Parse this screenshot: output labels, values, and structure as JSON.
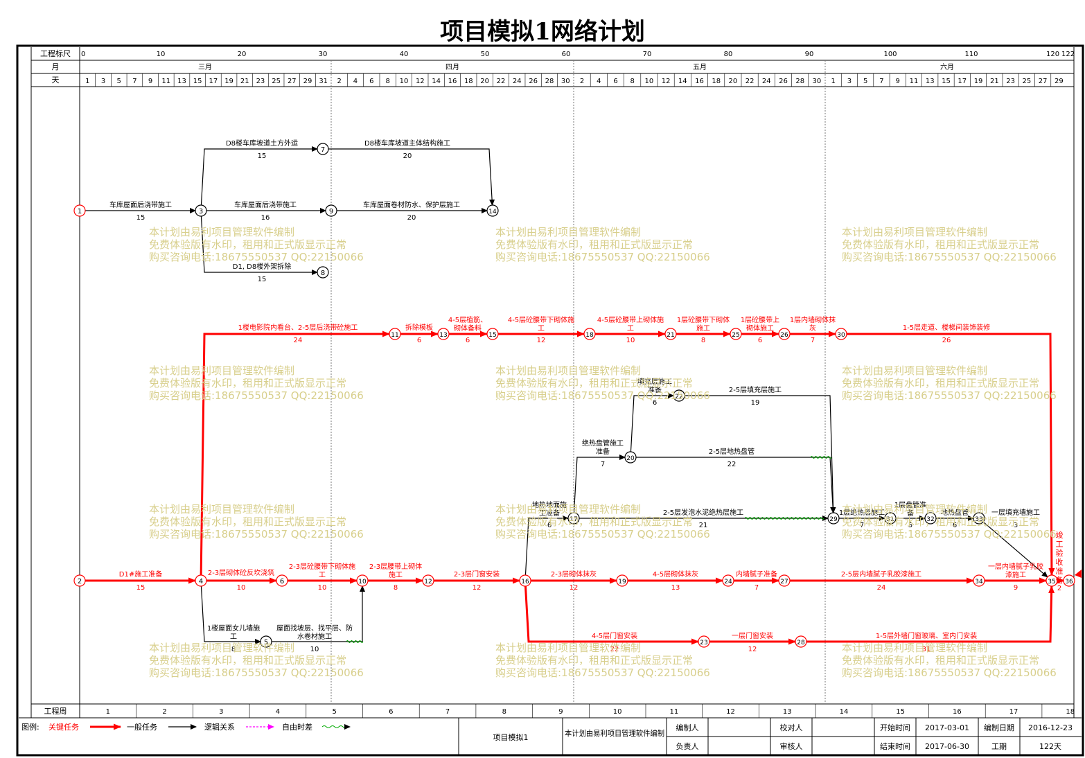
{
  "title": "项目模拟1网络计划",
  "scale": {
    "ruler_label": "工程标尺",
    "month_label": "月",
    "day_label": "天",
    "week_label": "工程周",
    "ruler_ticks": [
      "0",
      "10",
      "20",
      "30",
      "40",
      "50",
      "60",
      "70",
      "80",
      "90",
      "100",
      "110",
      "120",
      "122"
    ],
    "months": [
      "三月",
      "四月",
      "五月",
      "六月"
    ],
    "days": {
      "mar": [
        "1",
        "3",
        "5",
        "7",
        "9",
        "11",
        "13",
        "15",
        "17",
        "19",
        "21",
        "23",
        "25",
        "27",
        "29",
        "31"
      ],
      "apr": [
        "2",
        "4",
        "6",
        "8",
        "10",
        "12",
        "14",
        "16",
        "18",
        "20",
        "22",
        "24",
        "26",
        "28",
        "30"
      ],
      "may": [
        "2",
        "4",
        "6",
        "8",
        "10",
        "12",
        "14",
        "16",
        "18",
        "20",
        "22",
        "24",
        "26",
        "28",
        "30"
      ],
      "jun": [
        "1",
        "3",
        "5",
        "7",
        "9",
        "11",
        "13",
        "15",
        "17",
        "19",
        "21",
        "23",
        "25",
        "27",
        "29"
      ]
    },
    "weeks": [
      "1",
      "2",
      "3",
      "4",
      "5",
      "6",
      "7",
      "8",
      "9",
      "10",
      "11",
      "12",
      "13",
      "14",
      "15",
      "16",
      "17",
      "18"
    ]
  },
  "nodes": [
    "1",
    "2",
    "3",
    "4",
    "5",
    "6",
    "7",
    "8",
    "9",
    "10",
    "11",
    "12",
    "13",
    "14",
    "15",
    "16",
    "17",
    "18",
    "19",
    "20",
    "21",
    "22",
    "23",
    "24",
    "25",
    "26",
    "27",
    "28",
    "29",
    "30",
    "31",
    "32",
    "33",
    "34",
    "35",
    "36"
  ],
  "tasks": {
    "t1_3": {
      "name": "车库屋面后浇带施工",
      "dur": "15"
    },
    "t3_7": {
      "name": "D8楼车库坡道土方外运",
      "dur": "15"
    },
    "t7_14": {
      "name": "D8楼车库坡道主体结构施工",
      "dur": "20"
    },
    "t3_9": {
      "name": "车库屋面后浇带施工",
      "dur": "16"
    },
    "t9_14": {
      "name": "车库屋面卷材防水、保护层施工",
      "dur": "20"
    },
    "t3_8": {
      "name": "D1, D8楼外架拆除",
      "dur": "15"
    },
    "t4_11": {
      "name": "1楼电影院内看台、2-5层后浇带砼施工",
      "dur": "24"
    },
    "t11_13": {
      "name": "拆除模板",
      "dur": "6"
    },
    "t13_15a": {
      "name": "4-5层植筋、",
      "dur": "6"
    },
    "t13_15b": {
      "name": "砌体备料"
    },
    "t15_18a": {
      "name": "4-5层砼腰带下砌体施",
      "dur": "12"
    },
    "t15_18b": {
      "name": "工"
    },
    "t18_21a": {
      "name": "4-5层砼腰带上砌体施",
      "dur": "10"
    },
    "t18_21b": {
      "name": "工"
    },
    "t21_25a": {
      "name": "1层砼腰带下砌体",
      "dur": "8"
    },
    "t21_25b": {
      "name": "施工"
    },
    "t25_26a": {
      "name": "1层砼腰带上",
      "dur": "6"
    },
    "t25_26b": {
      "name": "砌体施工"
    },
    "t26_30a": {
      "name": "1层内墙砌体抹",
      "dur": "7"
    },
    "t26_30b": {
      "name": "灰"
    },
    "t30_35": {
      "name": "1-5层走道、楼梯间装饰装修",
      "dur": "26"
    },
    "t20_22a": {
      "name": "填充层施工",
      "dur": "6"
    },
    "t20_22b": {
      "name": "准备"
    },
    "t22_29": {
      "name": "2-5层填充层施工",
      "dur": "19"
    },
    "t17_20a": {
      "name": "绝热盘管施工",
      "dur": "7"
    },
    "t17_20b": {
      "name": "准备"
    },
    "t20_29": {
      "name": "2-5层地热盘管",
      "dur": "22"
    },
    "t16_17a": {
      "name": "地热地面施",
      "dur": "6"
    },
    "t16_17b": {
      "name": "工准备"
    },
    "t17_29": {
      "name": "2-5层发泡水泥绝热层施工",
      "dur": "21"
    },
    "t29_31": {
      "name": "1层绝热层施工",
      "dur": "7"
    },
    "t31_32a": {
      "name": "1层盘管准",
      "dur": "5"
    },
    "t31_32b": {
      "name": "备"
    },
    "t32_33": {
      "name": "地热盘管",
      "dur": "6"
    },
    "t33_35": {
      "name": "一层填充墙施工",
      "dur": "3"
    },
    "t2_4": {
      "name": "D1#施工准备",
      "dur": "15"
    },
    "t4_6": {
      "name": "2-3层砌体砼反坎浇筑",
      "dur": "10"
    },
    "t6_10a": {
      "name": "2-3层砼腰带下砌体施",
      "dur": "10"
    },
    "t6_10b": {
      "name": "工"
    },
    "t10_12a": {
      "name": "2-3层腰带上砌体",
      "dur": "8"
    },
    "t10_12b": {
      "name": "施工"
    },
    "t12_16": {
      "name": "2-3层门窗安装",
      "dur": "12"
    },
    "t16_19": {
      "name": "2-3层砌体抹灰",
      "dur": "12"
    },
    "t19_24": {
      "name": "4-5层砌体抹灰",
      "dur": "13"
    },
    "t24_27": {
      "name": "内墙腻子准备",
      "dur": "7"
    },
    "t27_34": {
      "name": "2-5层内墙腻子乳胶漆施工",
      "dur": "24"
    },
    "t34_35a": {
      "name": "一层内墙腻子乳胶",
      "dur": "9"
    },
    "t34_35b": {
      "name": "漆施工"
    },
    "t35_36": {
      "name": "竣工验收准备",
      "dur": "2"
    },
    "t4_5a": {
      "name": "1楼屋面女儿墙施",
      "dur": "8"
    },
    "t4_5b": {
      "name": "工"
    },
    "t5_10a": {
      "name": "屋面找坡层、找平层、防",
      "dur": "10"
    },
    "t5_10b": {
      "name": "水卷材施工"
    },
    "t16_23": {
      "name": "4-5层门窗安装",
      "dur": "22"
    },
    "t23_28": {
      "name": "一层门窗安装",
      "dur": "12"
    },
    "t28_35": {
      "name": "1-5层外墙门窗玻璃、室内门安装",
      "dur": "31"
    }
  },
  "watermark": {
    "line1": "本计划由易利项目管理软件编制",
    "line2": "免费体验版有水印，租用和正式版显示正常",
    "line3": "购买咨询电话:18675550537 QQ:22150066"
  },
  "legend": {
    "label": "图例:",
    "critical": "关键任务",
    "normal": "一般任务",
    "logic": "逻辑关系",
    "float": "自由时差"
  },
  "footer": {
    "project_name": "项目模拟1",
    "software_note": "本计划由易利项目管理软件编制",
    "compiler_label": "编制人",
    "checker_label": "校对人",
    "start_label": "开始时间",
    "start_value": "2017-03-01",
    "compile_date_label": "编制日期",
    "compile_date_value": "2016-12-23",
    "owner_label": "负责人",
    "reviewer_label": "审核人",
    "end_label": "结束时间",
    "end_value": "2017-06-30",
    "duration_label": "工期",
    "duration_value": "122天"
  },
  "colors": {
    "critical": "#ff0000",
    "normal": "#000000",
    "logic": "#ff00ff",
    "float": "#00aa00",
    "watermark": "#d8cf8c"
  }
}
